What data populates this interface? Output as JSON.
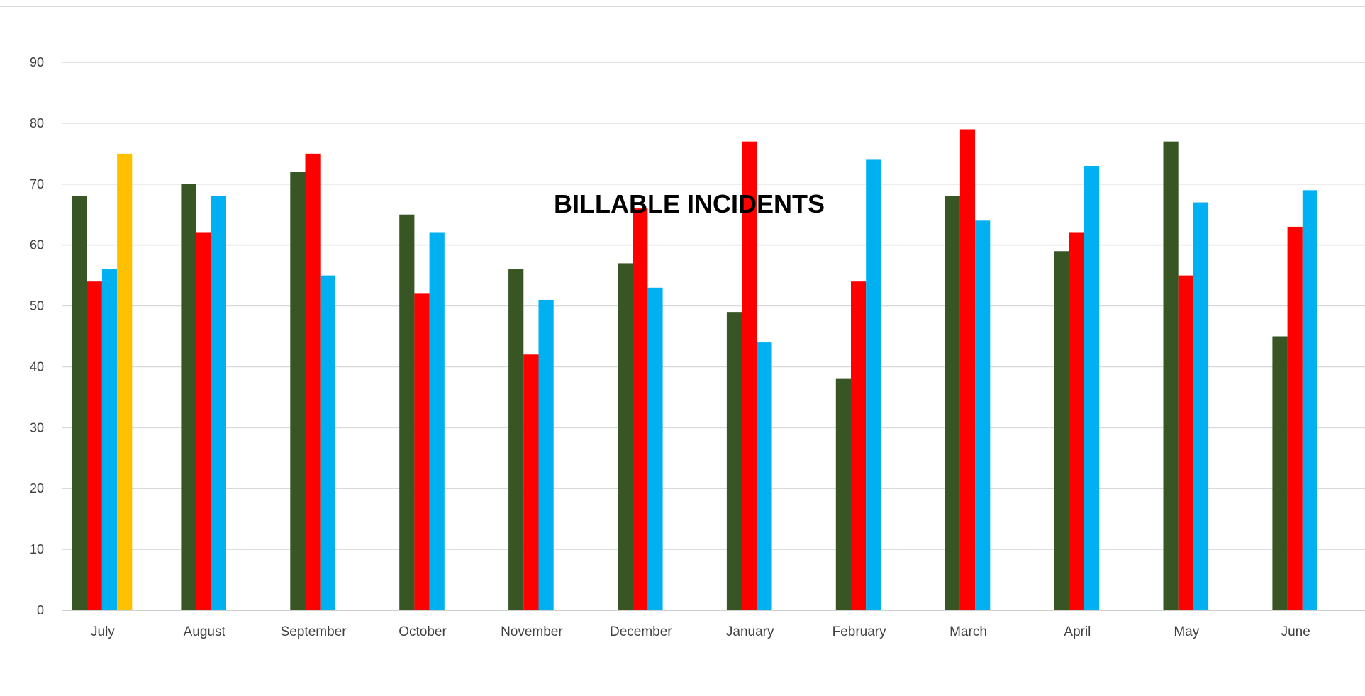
{
  "chart_data": {
    "type": "bar",
    "title": "BILLABLE INCIDENTS",
    "xlabel": "",
    "ylabel": "",
    "ylim": [
      0,
      90
    ],
    "yticks": [
      0,
      10,
      20,
      30,
      40,
      50,
      60,
      70,
      80,
      90
    ],
    "grid": true,
    "legend": "none",
    "categories": [
      "July",
      "August",
      "September",
      "October",
      "November",
      "December",
      "January",
      "February",
      "March",
      "April",
      "May",
      "June"
    ],
    "series": [
      {
        "color": "#375623",
        "values": [
          68,
          70,
          72,
          65,
          56,
          57,
          49,
          38,
          68,
          59,
          77,
          45
        ]
      },
      {
        "color": "#FF0000",
        "values": [
          54,
          62,
          75,
          52,
          42,
          66,
          77,
          54,
          79,
          62,
          55,
          63
        ]
      },
      {
        "color": "#00B0F0",
        "values": [
          56,
          68,
          55,
          62,
          51,
          53,
          44,
          74,
          64,
          73,
          67,
          69
        ]
      },
      {
        "color": "#FFC000",
        "values": [
          75,
          null,
          null,
          null,
          null,
          null,
          null,
          null,
          null,
          null,
          null,
          null
        ]
      }
    ]
  }
}
